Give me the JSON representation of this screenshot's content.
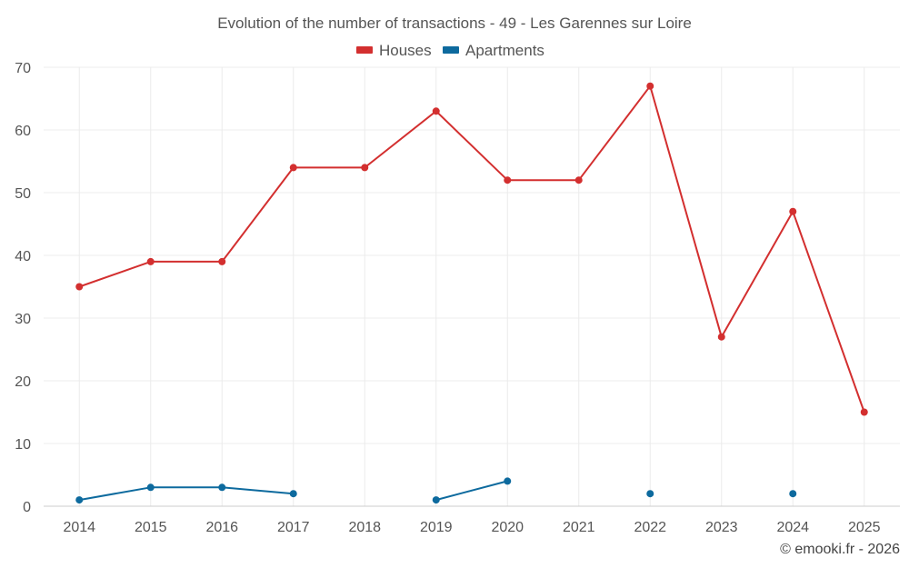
{
  "chart_data": {
    "type": "line",
    "title": "Evolution of the number of transactions - 49 - Les Garennes sur Loire",
    "categories": [
      "2014",
      "2015",
      "2016",
      "2017",
      "2018",
      "2019",
      "2020",
      "2021",
      "2022",
      "2023",
      "2024",
      "2025"
    ],
    "ylim": [
      0,
      70
    ],
    "yticks": [
      0,
      10,
      20,
      30,
      40,
      50,
      60,
      70
    ],
    "grid": true,
    "legend_position": "top-center",
    "series": [
      {
        "name": "Houses",
        "color": "#d32f2f",
        "values": [
          35,
          39,
          39,
          54,
          54,
          63,
          52,
          52,
          67,
          27,
          47,
          15
        ]
      },
      {
        "name": "Apartments",
        "color": "#0d6a9e",
        "values": [
          1,
          3,
          3,
          2,
          null,
          1,
          4,
          null,
          2,
          null,
          2,
          null
        ]
      }
    ],
    "credit": "© emooki.fr - 2026"
  }
}
